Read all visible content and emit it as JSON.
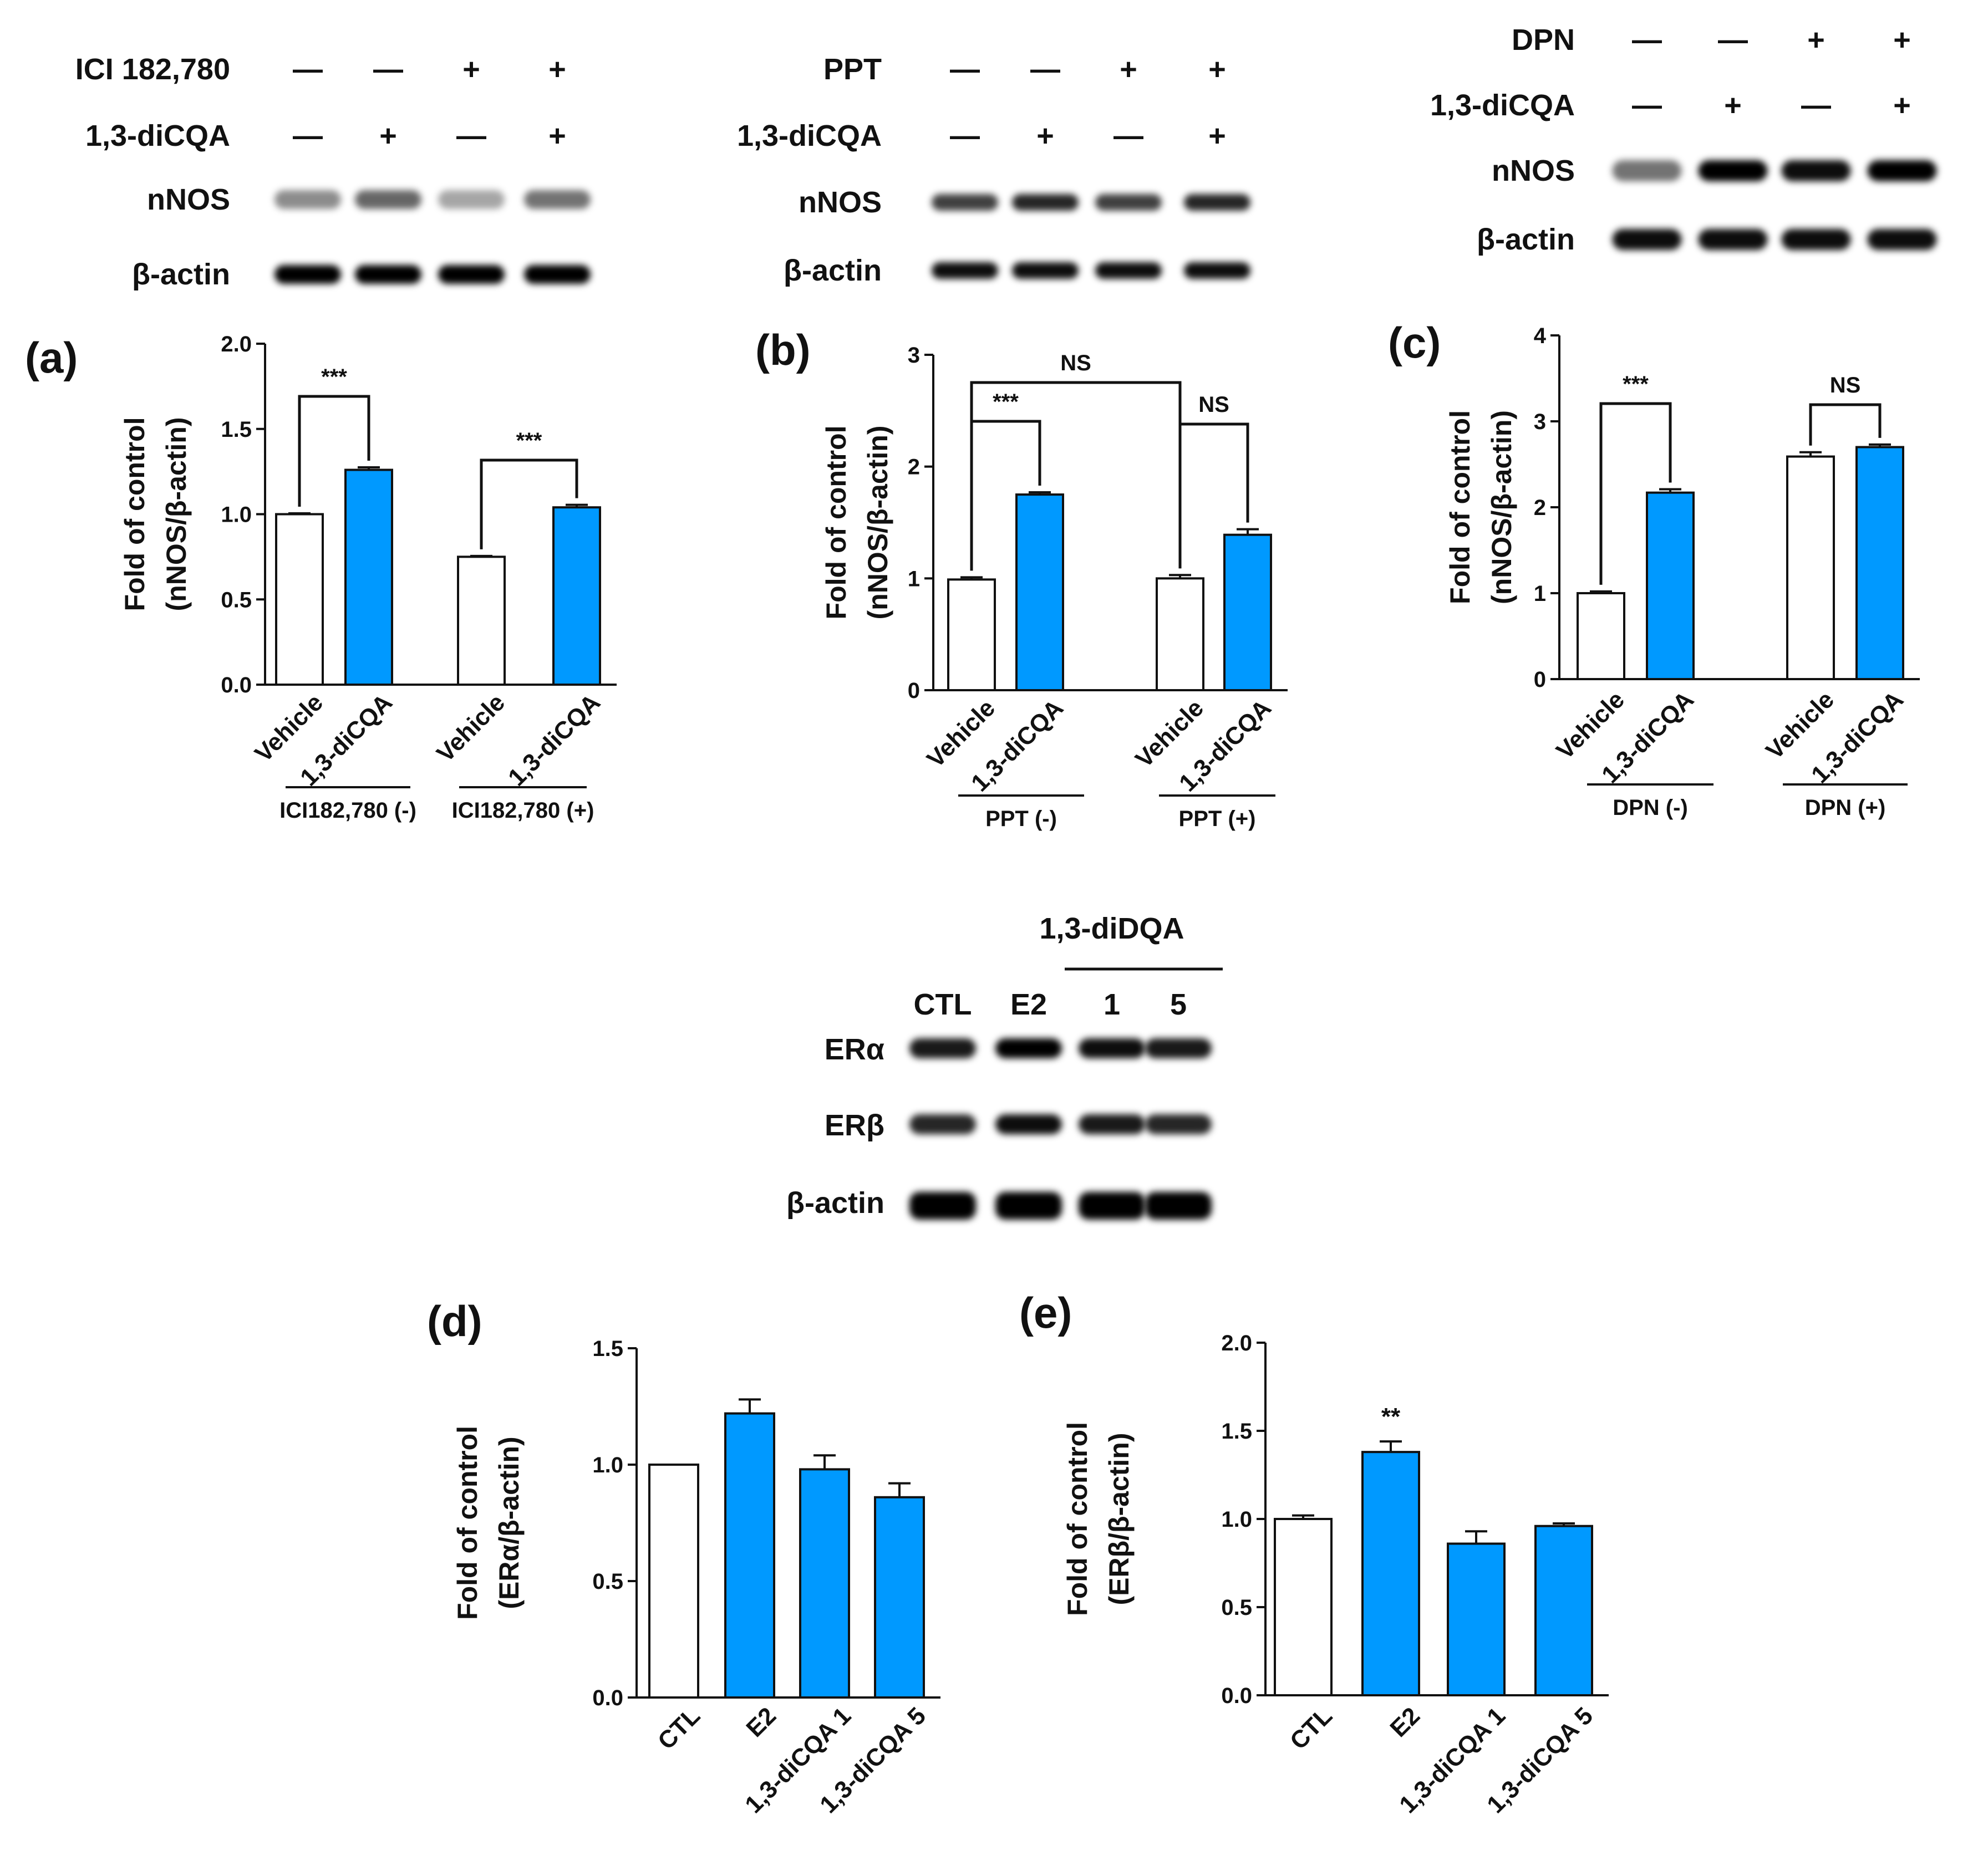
{
  "colors": {
    "treated": "#0099ff",
    "control": "#ffffff",
    "ink": "#111111"
  },
  "blots": {
    "a": {
      "treatment_rows": [
        {
          "label": "ICI 182,780",
          "marks": [
            "—",
            "—",
            "+",
            "+"
          ]
        },
        {
          "label": "1,3-diCQA",
          "marks": [
            "—",
            "+",
            "—",
            "+"
          ]
        }
      ],
      "band_rows": [
        {
          "label": "nNOS",
          "intensity": [
            0.45,
            0.6,
            0.35,
            0.55
          ]
        },
        {
          "label": "β-actin",
          "intensity": [
            1.0,
            1.0,
            1.0,
            1.0
          ]
        }
      ]
    },
    "b": {
      "treatment_rows": [
        {
          "label": "PPT",
          "marks": [
            "—",
            "—",
            "+",
            "+"
          ]
        },
        {
          "label": "1,3-diCQA",
          "marks": [
            "—",
            "+",
            "—",
            "+"
          ]
        }
      ],
      "band_rows": [
        {
          "label": "nNOS",
          "intensity": [
            0.75,
            0.85,
            0.75,
            0.85
          ]
        },
        {
          "label": "β-actin",
          "intensity": [
            0.95,
            0.95,
            0.95,
            0.95
          ]
        }
      ]
    },
    "c": {
      "treatment_rows": [
        {
          "label": "DPN",
          "marks": [
            "—",
            "—",
            "+",
            "+"
          ]
        },
        {
          "label": "1,3-diCQA",
          "marks": [
            "—",
            "+",
            "—",
            "+"
          ]
        }
      ],
      "band_rows": [
        {
          "label": "nNOS",
          "intensity": [
            0.55,
            1.0,
            0.95,
            1.0
          ]
        },
        {
          "label": "β-actin",
          "intensity": [
            0.95,
            0.95,
            0.95,
            0.95
          ]
        }
      ]
    },
    "de": {
      "group_label": "1,3-diDQA",
      "lane_labels": [
        "CTL",
        "E2",
        "1",
        "5"
      ],
      "band_rows": [
        {
          "label": "ERα",
          "intensity": [
            0.9,
            1.0,
            0.95,
            0.9
          ]
        },
        {
          "label": "ERβ",
          "intensity": [
            0.85,
            0.95,
            0.9,
            0.85
          ]
        },
        {
          "label": "β-actin",
          "intensity": [
            1.0,
            1.0,
            1.0,
            1.0
          ]
        }
      ]
    }
  },
  "chart_data": [
    {
      "panel": "(a)",
      "type": "bar",
      "categories": [
        "Vehicle",
        "1,3-diCQA",
        "Vehicle",
        "1,3-diCQA"
      ],
      "groups": [
        "ICI182,780 (-)",
        "ICI182,780 (+)"
      ],
      "values": [
        1.0,
        1.26,
        0.75,
        1.04
      ],
      "errors": [
        0.005,
        0.015,
        0.005,
        0.015
      ],
      "fills": [
        "control",
        "treated",
        "control",
        "treated"
      ],
      "ylim": [
        0,
        2.0
      ],
      "yticks": [
        "0.0",
        "0.5",
        "1.0",
        "1.5",
        "2.0"
      ],
      "ylabel": [
        "Fold of control",
        "(nNOS/β-actin)"
      ],
      "annotations": [
        {
          "from": 0,
          "to": 1,
          "text": "***"
        },
        {
          "from": 2,
          "to": 3,
          "text": "***"
        }
      ]
    },
    {
      "panel": "(b)",
      "type": "bar",
      "categories": [
        "Vehicle",
        "1,3-diCQA",
        "Vehicle",
        "1,3-diCQA"
      ],
      "groups": [
        "PPT (-)",
        "PPT (+)"
      ],
      "values": [
        0.99,
        1.75,
        1.0,
        1.39
      ],
      "errors": [
        0.02,
        0.02,
        0.03,
        0.05
      ],
      "fills": [
        "control",
        "treated",
        "control",
        "treated"
      ],
      "ylim": [
        0,
        3
      ],
      "yticks": [
        "0",
        "1",
        "2",
        "3"
      ],
      "ylabel": [
        "Fold of control",
        "(nNOS/β-actin)"
      ],
      "annotations": [
        {
          "from": 0,
          "to": 1,
          "text": "***"
        },
        {
          "from": 2,
          "to": 3,
          "text": "NS"
        },
        {
          "from": 0,
          "to": 2,
          "text": "NS"
        }
      ]
    },
    {
      "panel": "(c)",
      "type": "bar",
      "categories": [
        "Vehicle",
        "1,3-diCQA",
        "Vehicle",
        "1,3-diCQA"
      ],
      "groups": [
        "DPN (-)",
        "DPN (+)"
      ],
      "values": [
        1.0,
        2.17,
        2.59,
        2.7
      ],
      "errors": [
        0.02,
        0.04,
        0.05,
        0.03
      ],
      "fills": [
        "control",
        "treated",
        "control",
        "treated"
      ],
      "ylim": [
        0,
        4
      ],
      "yticks": [
        "0",
        "1",
        "2",
        "3",
        "4"
      ],
      "ylabel": [
        "Fold of control",
        "(nNOS/β-actin)"
      ],
      "annotations": [
        {
          "from": 0,
          "to": 1,
          "text": "***"
        },
        {
          "from": 2,
          "to": 3,
          "text": "NS"
        }
      ]
    },
    {
      "panel": "(d)",
      "type": "bar",
      "categories": [
        "CTL",
        "E2",
        "1,3-diCQA 1",
        "1,3-diCQA 5"
      ],
      "values": [
        1.0,
        1.22,
        0.98,
        0.86
      ],
      "errors": [
        0,
        0.06,
        0.06,
        0.06
      ],
      "fills": [
        "control",
        "treated",
        "treated",
        "treated"
      ],
      "ylim": [
        0,
        1.5
      ],
      "yticks": [
        "0.0",
        "0.5",
        "1.0",
        "1.5"
      ],
      "ylabel": [
        "Fold of control",
        "(ERα/β-actin)"
      ],
      "stars": []
    },
    {
      "panel": "(e)",
      "type": "bar",
      "categories": [
        "CTL",
        "E2",
        "1,3-diCQA 1",
        "1,3-diCQA 5"
      ],
      "values": [
        1.0,
        1.38,
        0.86,
        0.96
      ],
      "errors": [
        0.02,
        0.06,
        0.07,
        0.015
      ],
      "fills": [
        "control",
        "treated",
        "treated",
        "treated"
      ],
      "ylim": [
        0,
        2.0
      ],
      "yticks": [
        "0.0",
        "0.5",
        "1.0",
        "1.5",
        "2.0"
      ],
      "ylabel": [
        "Fold of control",
        "(ERβ/β-actin)"
      ],
      "stars": [
        {
          "index": 1,
          "text": "**"
        }
      ]
    }
  ]
}
